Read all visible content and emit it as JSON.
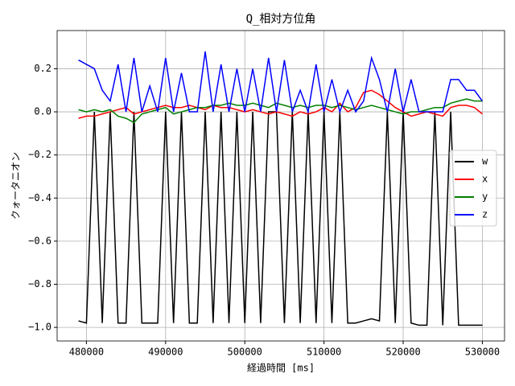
{
  "chart_data": {
    "type": "line",
    "title": "Q_相対方位角",
    "xlabel": "経過時間 [ms]",
    "ylabel": "クォータニオン",
    "x": [
      479000,
      480000,
      481000,
      482000,
      483000,
      484000,
      485000,
      486000,
      487000,
      488000,
      489000,
      490000,
      491000,
      492000,
      493000,
      494000,
      495000,
      496000,
      497000,
      498000,
      499000,
      500000,
      501000,
      502000,
      503000,
      504000,
      505000,
      506000,
      507000,
      508000,
      509000,
      510000,
      511000,
      512000,
      513000,
      514000,
      515000,
      516000,
      517000,
      518000,
      519000,
      520000,
      521000,
      522000,
      523000,
      524000,
      525000,
      526000,
      527000,
      528000,
      529000,
      530000
    ],
    "series": [
      {
        "name": "w",
        "color": "#000000",
        "values": [
          -0.97,
          -0.98,
          0,
          -0.98,
          0,
          -0.98,
          -0.98,
          0,
          -0.98,
          -0.98,
          -0.98,
          0,
          -0.98,
          0,
          -0.98,
          -0.98,
          0,
          -0.98,
          0,
          -0.98,
          0,
          -0.98,
          0,
          -0.98,
          0,
          0,
          -0.98,
          0,
          -0.98,
          0,
          -0.98,
          0,
          -0.98,
          0,
          -0.98,
          -0.98,
          -0.97,
          -0.96,
          -0.97,
          0,
          -0.98,
          0,
          -0.98,
          -0.99,
          -0.99,
          0,
          -0.99,
          0,
          -0.99,
          -0.99,
          -0.99,
          -0.99
        ]
      },
      {
        "name": "x",
        "color": "#ff0000",
        "values": [
          -0.03,
          -0.02,
          -0.02,
          -0.01,
          0.0,
          0.01,
          0.02,
          -0.01,
          0.0,
          0.01,
          0.02,
          0.03,
          0.02,
          0.02,
          0.03,
          0.02,
          0.01,
          0.03,
          0.02,
          0.02,
          0.01,
          0.0,
          0.01,
          0.0,
          -0.01,
          0.0,
          -0.01,
          -0.02,
          0.0,
          -0.01,
          0.0,
          0.02,
          0.0,
          0.04,
          0.0,
          0.02,
          0.09,
          0.1,
          0.08,
          0.05,
          0.02,
          0.0,
          -0.02,
          -0.01,
          0.0,
          -0.01,
          -0.02,
          0.02,
          0.03,
          0.03,
          0.02,
          -0.01
        ]
      },
      {
        "name": "y",
        "color": "#008000",
        "values": [
          0.01,
          0.0,
          0.01,
          0.0,
          0.01,
          -0.02,
          -0.03,
          -0.05,
          -0.01,
          0.0,
          0.01,
          0.02,
          -0.01,
          0.0,
          0.01,
          0.02,
          0.02,
          0.03,
          0.03,
          0.04,
          0.03,
          0.03,
          0.04,
          0.03,
          0.02,
          0.04,
          0.03,
          0.02,
          0.03,
          0.02,
          0.03,
          0.03,
          0.02,
          0.03,
          0.02,
          0.01,
          0.02,
          0.03,
          0.02,
          0.01,
          0.0,
          -0.01,
          0.0,
          0.0,
          0.01,
          0.02,
          0.02,
          0.04,
          0.05,
          0.06,
          0.05,
          0.05
        ]
      },
      {
        "name": "z",
        "color": "#0000ff",
        "values": [
          0.24,
          0.22,
          0.2,
          0.1,
          0.05,
          0.22,
          0.0,
          0.25,
          0.0,
          0.12,
          0.0,
          0.25,
          0.0,
          0.18,
          0.0,
          0.0,
          0.28,
          0.0,
          0.22,
          0.0,
          0.2,
          0.0,
          0.2,
          0.0,
          0.25,
          0.0,
          0.24,
          0.0,
          0.1,
          0.0,
          0.22,
          0.0,
          0.15,
          0.0,
          0.1,
          0.0,
          0.05,
          0.25,
          0.15,
          0.0,
          0.2,
          0.0,
          0.15,
          0.0,
          0.0,
          0.0,
          0.0,
          0.15,
          0.15,
          0.1,
          0.1,
          0.05
        ]
      }
    ],
    "xlim": [
      476300,
      532800
    ],
    "ylim": [
      -1.063,
      0.377
    ],
    "xticks": [
      480000,
      490000,
      500000,
      510000,
      520000,
      530000
    ],
    "yticks": [
      {
        "value": -1.0,
        "label": "−1.0"
      },
      {
        "value": -0.8,
        "label": "−0.8"
      },
      {
        "value": -0.6,
        "label": "−0.6"
      },
      {
        "value": -0.4,
        "label": "−0.4"
      },
      {
        "value": -0.2,
        "label": "−0.2"
      },
      {
        "value": 0.0,
        "label": "0.0"
      },
      0.2
    ],
    "grid": true,
    "legend": "center right"
  }
}
